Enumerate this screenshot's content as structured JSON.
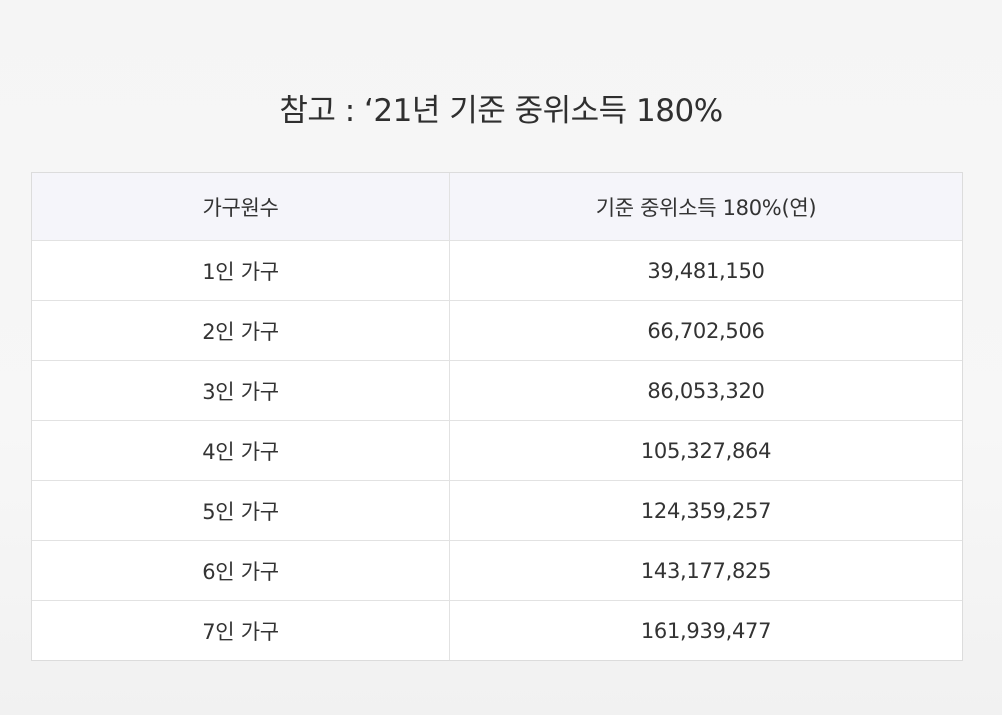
{
  "title": "참고 : ‘21년 기준 중위소득 180%",
  "table": {
    "headers": [
      "가구원수",
      "기준 중위소득 180%(연)"
    ],
    "rows": [
      [
        "1인 가구",
        "39,481,150"
      ],
      [
        "2인 가구",
        "66,702,506"
      ],
      [
        "3인 가구",
        "86,053,320"
      ],
      [
        "4인 가구",
        "105,327,864"
      ],
      [
        "5인 가구",
        "124,359,257"
      ],
      [
        "6인 가구",
        "143,177,825"
      ],
      [
        "7인 가구",
        "161,939,477"
      ]
    ]
  }
}
